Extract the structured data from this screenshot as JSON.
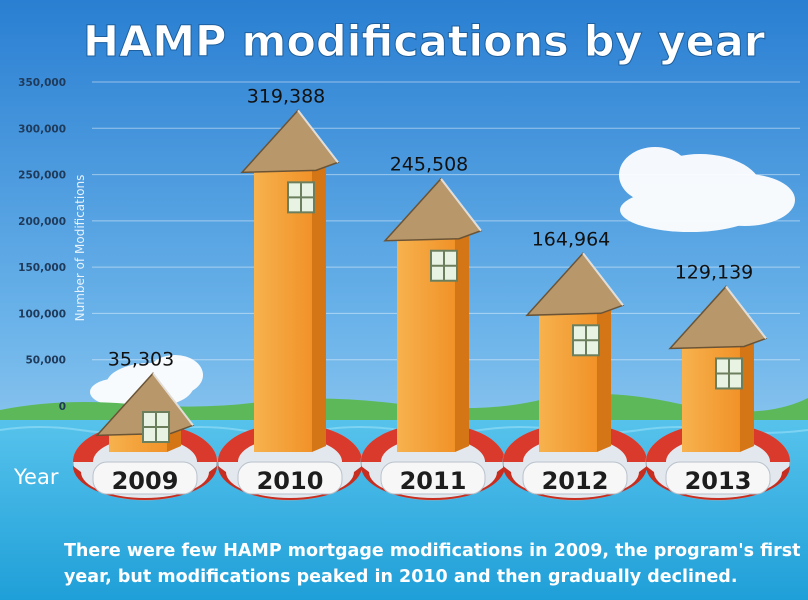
{
  "chart_data": {
    "type": "bar",
    "title": "HAMP modifications by year",
    "ylabel": "Number of Modifications",
    "xlabel": "Year",
    "categories": [
      "2009",
      "2010",
      "2011",
      "2012",
      "2013"
    ],
    "values": [
      35303,
      319388,
      245508,
      164964,
      129139
    ],
    "value_labels": [
      "35,303",
      "319,388",
      "245,508",
      "164,964",
      "129,139"
    ],
    "ylim": [
      0,
      350000
    ],
    "yticks": [
      0,
      50000,
      100000,
      150000,
      200000,
      250000,
      300000,
      350000
    ],
    "ytick_labels": [
      "0",
      "50,000",
      "100,000",
      "150,000",
      "200,000",
      "250,000",
      "300,000",
      "350,000"
    ],
    "grid": true,
    "caption": "There were few HAMP mortgage modifications in 2009, the program's first year, but modifications peaked in 2010 and then gradually declined."
  },
  "colors": {
    "sky_top": "#2f86d6",
    "sky_bottom": "#9fd0f2",
    "water": "#39b3e6",
    "house_front": "#f5a23a",
    "house_side": "#d97c18",
    "roof": "#b99a6b",
    "ring_red": "#d93a2b",
    "ring_white": "#f4f4f4"
  }
}
